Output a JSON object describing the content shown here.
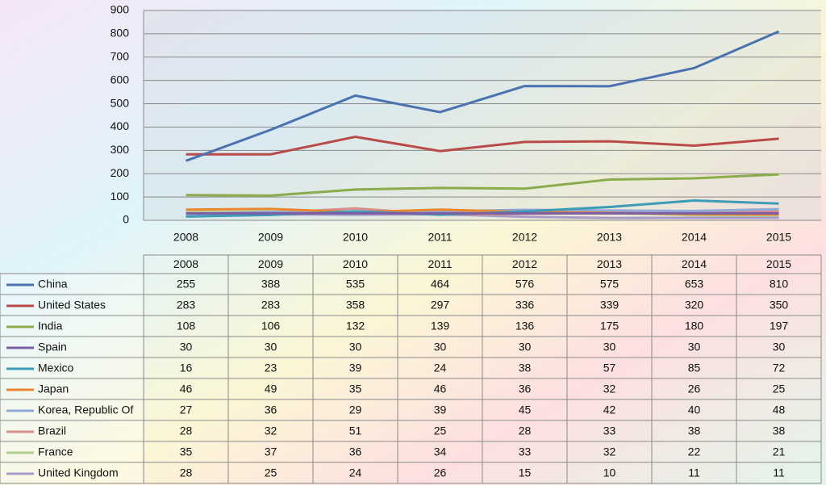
{
  "chart_data": {
    "type": "line",
    "categories": [
      "2008",
      "2009",
      "2010",
      "2011",
      "2012",
      "2013",
      "2014",
      "2015"
    ],
    "ylim": [
      0,
      900
    ],
    "yticks": [
      0,
      100,
      200,
      300,
      400,
      500,
      600,
      700,
      800,
      900
    ],
    "grid": true,
    "series": [
      {
        "name": "China",
        "color": "#4a72b0",
        "values": [
          255,
          388,
          535,
          464,
          576,
          575,
          653,
          810
        ]
      },
      {
        "name": "United States",
        "color": "#b94a48",
        "values": [
          283,
          283,
          358,
          297,
          336,
          339,
          320,
          350
        ]
      },
      {
        "name": "India",
        "color": "#8aac4a",
        "values": [
          108,
          106,
          132,
          139,
          136,
          175,
          180,
          197
        ]
      },
      {
        "name": "Spain",
        "color": "#7b5ea4",
        "values": [
          30,
          30,
          30,
          30,
          30,
          30,
          30,
          30
        ]
      },
      {
        "name": "Mexico",
        "color": "#3e9bb5",
        "values": [
          16,
          23,
          39,
          24,
          38,
          57,
          85,
          72
        ]
      },
      {
        "name": "Japan",
        "color": "#e9862f",
        "values": [
          46,
          49,
          35,
          46,
          36,
          32,
          26,
          25
        ]
      },
      {
        "name": "Korea, Republic Of",
        "color": "#8fa9d9",
        "values": [
          27,
          36,
          29,
          39,
          45,
          42,
          40,
          48
        ]
      },
      {
        "name": "Brazil",
        "color": "#d98d8b",
        "values": [
          28,
          32,
          51,
          25,
          28,
          33,
          38,
          38
        ]
      },
      {
        "name": "France",
        "color": "#b3cf8f",
        "values": [
          35,
          37,
          36,
          34,
          33,
          32,
          22,
          21
        ]
      },
      {
        "name": "United Kingdom",
        "color": "#a99bc8",
        "values": [
          28,
          25,
          24,
          26,
          15,
          10,
          11,
          11
        ]
      }
    ]
  }
}
